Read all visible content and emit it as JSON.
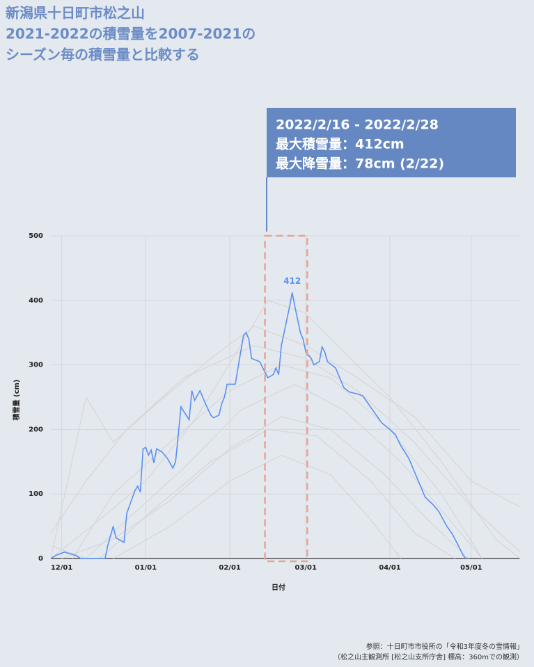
{
  "chart_data": {
    "type": "line",
    "title_lines": [
      "新潟県十日町市松之山",
      "2021-2022の積雪量を2007-2021の",
      "シーズン毎の積雪量と比較する"
    ],
    "annotation_lines": [
      "2022/2/16 - 2022/2/28",
      "最大積雪量：412cm",
      "最大降雪量：78cm (2/22)"
    ],
    "highlight_range": [
      "02/16",
      "02/28"
    ],
    "x_label": "日付",
    "y_label": "積雪量 (cm)",
    "notes": [
      "参照：十日町市市役所の「令和3年度冬の雪情報」",
      "（松之山主観測所 [松之山支所庁舎] 標高：360mでの観測）"
    ],
    "xlim": [
      "11/27",
      "05/19"
    ],
    "xticks": [
      "12/01",
      "01/01",
      "02/01",
      "03/01",
      "04/01",
      "05/01"
    ],
    "ylim": [
      0,
      500
    ],
    "yticks": [
      0,
      100,
      200,
      300,
      400,
      500
    ],
    "grid": true,
    "series": [
      {
        "color": "#5b8ff0",
        "x": [
          "11/27",
          "11/29",
          "12/02",
          "12/06",
          "12/08",
          "12/17",
          "12/18",
          "12/20",
          "12/21",
          "12/24",
          "12/25",
          "12/28",
          "12/29",
          "12/30",
          "12/31",
          "01/01",
          "01/02",
          "01/03",
          "01/04",
          "01/05",
          "01/07",
          "01/09",
          "01/11",
          "01/12",
          "01/14",
          "01/15",
          "01/17",
          "01/18",
          "01/19",
          "01/21",
          "01/23",
          "01/25",
          "01/26",
          "01/28",
          "01/29",
          "01/30",
          "01/31",
          "02/03",
          "02/04",
          "02/06",
          "02/07",
          "02/08",
          "02/09",
          "02/12",
          "02/15",
          "02/17",
          "02/18",
          "02/19",
          "02/20",
          "02/22",
          "02/23",
          "02/24",
          "02/25",
          "02/27",
          "02/28",
          "03/01",
          "03/03",
          "03/04",
          "03/06",
          "03/07",
          "03/08",
          "03/09",
          "03/12",
          "03/13",
          "03/15",
          "03/17",
          "03/20",
          "03/22",
          "03/26",
          "03/29",
          "04/01",
          "04/03",
          "04/05",
          "04/08",
          "04/10",
          "04/12",
          "04/14",
          "04/17",
          "04/19",
          "04/22",
          "04/24",
          "04/26",
          "04/28",
          "04/29"
        ],
        "values": [
          0,
          5,
          10,
          5,
          0,
          0,
          20,
          50,
          32,
          25,
          70,
          105,
          112,
          103,
          170,
          172,
          160,
          168,
          148,
          170,
          165,
          155,
          140,
          150,
          235,
          228,
          215,
          260,
          245,
          260,
          240,
          222,
          218,
          222,
          240,
          250,
          270,
          270,
          295,
          345,
          350,
          340,
          310,
          305,
          280,
          285,
          295,
          285,
          330,
          370,
          390,
          412,
          390,
          350,
          340,
          320,
          310,
          300,
          305,
          328,
          320,
          305,
          295,
          285,
          265,
          258,
          255,
          252,
          228,
          210,
          200,
          192,
          175,
          155,
          135,
          115,
          95,
          83,
          73,
          50,
          38,
          22,
          5,
          0
        ]
      },
      {
        "color": "#d6d6d6",
        "x": [
          "11/27",
          "12/15",
          "01/01",
          "01/20",
          "02/05",
          "02/15",
          "03/01",
          "03/15",
          "04/01",
          "04/20",
          "05/10",
          "05/19"
        ],
        "values": [
          0,
          60,
          120,
          220,
          330,
          400,
          380,
          320,
          250,
          150,
          30,
          0
        ]
      },
      {
        "color": "#d6d6d6",
        "x": [
          "12/05",
          "12/20",
          "01/10",
          "02/01",
          "02/20",
          "03/10",
          "04/01",
          "04/20",
          "05/05"
        ],
        "values": [
          0,
          100,
          180,
          260,
          300,
          280,
          200,
          100,
          0
        ]
      },
      {
        "color": "#d6d6d6",
        "x": [
          "11/27",
          "12/10",
          "12/25",
          "01/15",
          "02/10",
          "03/01",
          "03/20",
          "04/10",
          "05/01",
          "05/19"
        ],
        "values": [
          40,
          120,
          200,
          280,
          330,
          310,
          260,
          180,
          80,
          10
        ]
      },
      {
        "color": "#d6d6d6",
        "x": [
          "12/15",
          "01/05",
          "01/25",
          "02/15",
          "03/05",
          "03/25",
          "04/10",
          "04/25"
        ],
        "values": [
          0,
          80,
          150,
          200,
          190,
          120,
          40,
          0
        ]
      },
      {
        "color": "#d6d6d6",
        "x": [
          "11/27",
          "12/10",
          "12/25",
          "01/15",
          "02/05",
          "02/25",
          "03/15",
          "04/05",
          "04/25",
          "05/05"
        ],
        "values": [
          20,
          0,
          60,
          140,
          230,
          270,
          230,
          150,
          50,
          0
        ]
      },
      {
        "color": "#d6d6d6",
        "x": [
          "12/01",
          "12/20",
          "01/10",
          "02/01",
          "02/20",
          "03/10",
          "03/30",
          "04/15",
          "04/30"
        ],
        "values": [
          0,
          30,
          90,
          170,
          220,
          200,
          130,
          60,
          0
        ]
      },
      {
        "color": "#d6d6d6",
        "x": [
          "11/27",
          "12/10",
          "12/20",
          "01/05",
          "01/25",
          "02/10",
          "03/01",
          "03/20",
          "04/10",
          "05/01",
          "05/19"
        ],
        "values": [
          0,
          250,
          180,
          240,
          310,
          360,
          330,
          280,
          220,
          120,
          80
        ]
      },
      {
        "color": "#d6d6d6",
        "x": [
          "12/20",
          "01/10",
          "02/01",
          "02/20",
          "03/10",
          "03/25",
          "04/05"
        ],
        "values": [
          0,
          50,
          120,
          160,
          130,
          60,
          0
        ]
      }
    ]
  }
}
